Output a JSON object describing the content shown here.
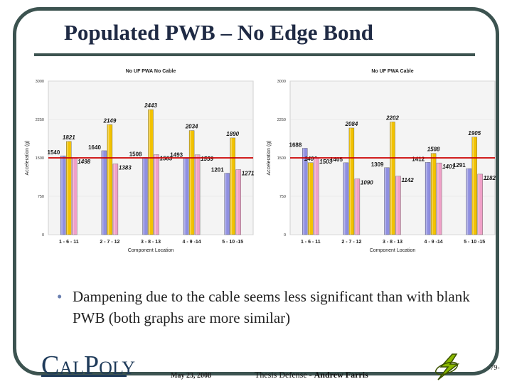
{
  "slide": {
    "title": "Populated PWB – No Edge Bond",
    "bullet": "Dampening due to the cable seems less significant than with blank PWB (both graphs are more similar)",
    "footer_date": "May 23, 2008",
    "footer_thesis_prefix": "Thesis Defense - ",
    "footer_author": "Andrew Farris",
    "page_number": "-79-",
    "logo_text": "CAL POLY",
    "logo_c": "C",
    "logo_al": "AL",
    "logo_p": "P",
    "logo_oly": "OLY",
    "frame_color": "#3c5350"
  },
  "chart_data": [
    {
      "type": "bar",
      "title": "No UF PWA No Cable",
      "xlabel": "Component Location",
      "ylabel": "Acceleration (g)",
      "ylim": [
        0,
        3000
      ],
      "yticks": [
        0,
        750,
        1500,
        2250,
        3000
      ],
      "reference_line": 1500,
      "categories": [
        "1 - 6 - 11",
        "2 - 7 - 12",
        "3 - 8 - 13",
        "4 - 9 -14",
        "5 - 10 -15"
      ],
      "series": [
        {
          "color": "#8f8fe0",
          "values": [
            1540,
            1640,
            1508,
            1493,
            1201
          ]
        },
        {
          "color": "#f2c200",
          "values": [
            1821,
            2149,
            2443,
            2034,
            1890
          ]
        },
        {
          "color": "#f0a0c8",
          "values": [
            1498,
            1383,
            1563,
            1559,
            1271
          ]
        }
      ]
    },
    {
      "type": "bar",
      "title": "No UF PWA Cable",
      "xlabel": "Component Location",
      "ylabel": "Acceleration (g)",
      "ylim": [
        0,
        3000
      ],
      "yticks": [
        0,
        750,
        1500,
        2250,
        3000
      ],
      "reference_line": 1500,
      "categories": [
        "1 - 6 - 11",
        "2 - 7 - 12",
        "3 - 8 - 13",
        "4 - 9 -14",
        "5 - 10 -15"
      ],
      "series": [
        {
          "color": "#8f8fe0",
          "values": [
            1688,
            1405,
            1309,
            1412,
            1291
          ]
        },
        {
          "color": "#f2c200",
          "values": [
            1406,
            2084,
            2202,
            1588,
            1905
          ]
        },
        {
          "color": "#f0a0c8",
          "values": [
            1503,
            1090,
            1142,
            1401,
            1182
          ]
        }
      ]
    }
  ]
}
